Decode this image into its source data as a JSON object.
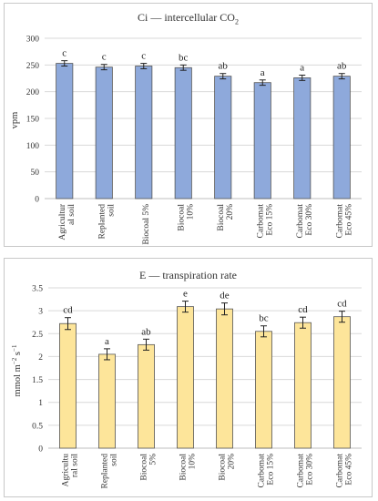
{
  "chart_data": [
    {
      "type": "bar",
      "title": "Ci — intercellular CO",
      "title_sub": "2",
      "ylabel": "vpm",
      "ylim": [
        0,
        300
      ],
      "yticks": [
        0,
        50,
        100,
        150,
        200,
        250,
        300
      ],
      "grid": true,
      "bar_color": "#8ea9db",
      "categories": [
        [
          "Agricultur",
          "al soil"
        ],
        [
          "Replanted",
          "soil"
        ],
        [
          "Biocoal 5%"
        ],
        [
          "Biocoal",
          "10%"
        ],
        [
          "Biocoal",
          "20%"
        ],
        [
          "Carbomat",
          "Eco 15%"
        ],
        [
          "Carbomat",
          "Eco 30%"
        ],
        [
          "Carbomat",
          "Eco 45%"
        ]
      ],
      "values": [
        253,
        246,
        248,
        245,
        229,
        217,
        226,
        229
      ],
      "errors": [
        5,
        5,
        5,
        5,
        5,
        5,
        5,
        5
      ],
      "letters": [
        "c",
        "c",
        "c",
        "bc",
        "ab",
        "a",
        "a",
        "ab"
      ]
    },
    {
      "type": "bar",
      "title": "E — transpiration rate",
      "ylabel_main": "mmol m",
      "ylabel_sup1": "−2",
      "ylabel_mid": " s",
      "ylabel_sup2": "−1",
      "ylim": [
        0,
        3.5
      ],
      "yticks": [
        0,
        0.5,
        1,
        1.5,
        2,
        2.5,
        3,
        3.5
      ],
      "grid": true,
      "bar_color": "#fde59a",
      "categories": [
        [
          "Agricultu",
          "ral soil"
        ],
        [
          "Replanted",
          "soil"
        ],
        [
          "Biocoal",
          "5%"
        ],
        [
          "Biocoal",
          "10%"
        ],
        [
          "Biocoal",
          "20%"
        ],
        [
          "Carbomat",
          "Eco 15%"
        ],
        [
          "Carbomat",
          "Eco 30%"
        ],
        [
          "Carbomat",
          "Eco 45%"
        ]
      ],
      "values": [
        2.72,
        2.05,
        2.26,
        3.09,
        3.04,
        2.55,
        2.74,
        2.87
      ],
      "errors": [
        0.13,
        0.12,
        0.12,
        0.12,
        0.13,
        0.12,
        0.12,
        0.12
      ],
      "letters": [
        "cd",
        "a",
        "ab",
        "e",
        "de",
        "bc",
        "cd",
        "cd"
      ]
    }
  ]
}
